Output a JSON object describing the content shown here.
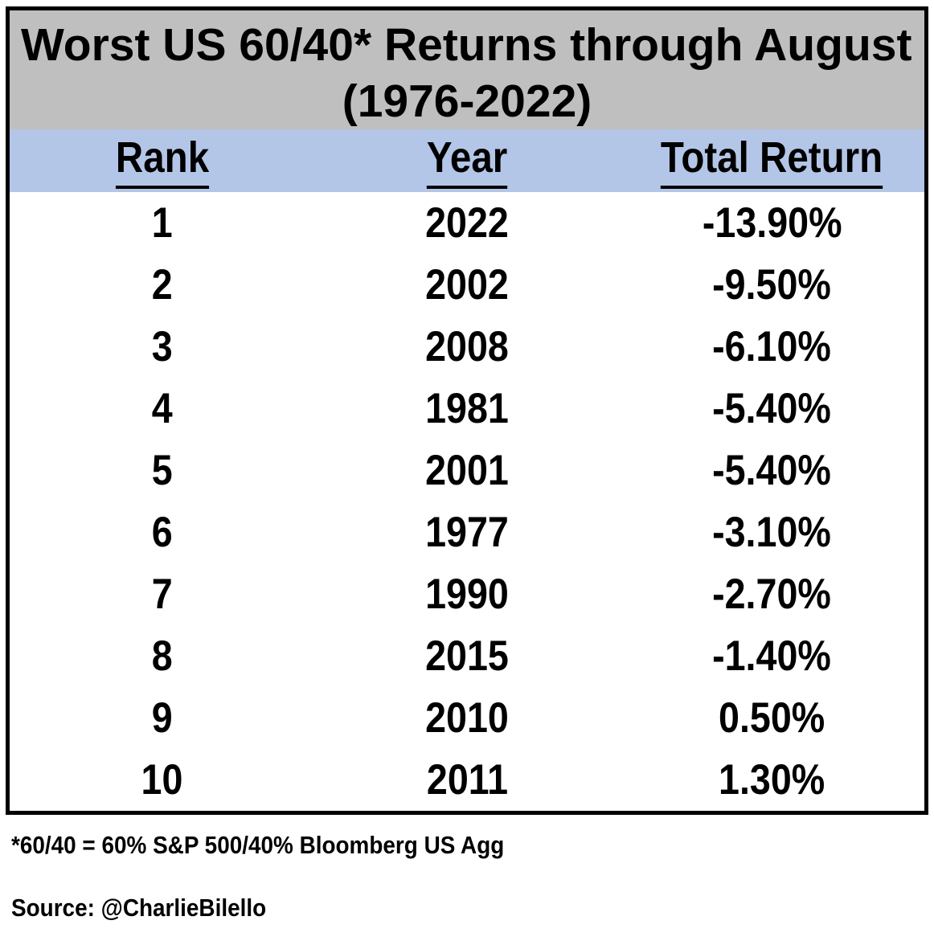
{
  "title": {
    "line1": "Worst US 60/40* Returns through August",
    "line2": "(1976-2022)"
  },
  "columns": {
    "rank": "Rank",
    "year": "Year",
    "total_return": "Total Return"
  },
  "rows": [
    {
      "rank": "1",
      "year": "2022",
      "total_return": "-13.90%"
    },
    {
      "rank": "2",
      "year": "2002",
      "total_return": "-9.50%"
    },
    {
      "rank": "3",
      "year": "2008",
      "total_return": "-6.10%"
    },
    {
      "rank": "4",
      "year": "1981",
      "total_return": "-5.40%"
    },
    {
      "rank": "5",
      "year": "2001",
      "total_return": "-5.40%"
    },
    {
      "rank": "6",
      "year": "1977",
      "total_return": "-3.10%"
    },
    {
      "rank": "7",
      "year": "1990",
      "total_return": "-2.70%"
    },
    {
      "rank": "8",
      "year": "2015",
      "total_return": "-1.40%"
    },
    {
      "rank": "9",
      "year": "2010",
      "total_return": "0.50%"
    },
    {
      "rank": "10",
      "year": "2011",
      "total_return": "1.30%"
    }
  ],
  "footnotes": {
    "definition": "*60/40 = 60% S&P 500/40% Bloomberg US Agg",
    "source": "Source: @CharlieBilello"
  },
  "colors": {
    "title_bg": "#bfbfbf",
    "header_bg": "#b4c6e7",
    "border": "#000000",
    "text": "#000000",
    "page_bg": "#ffffff"
  },
  "chart_data": {
    "type": "table",
    "title": "Worst US 60/40* Returns through August (1976-2022)",
    "columns": [
      "Rank",
      "Year",
      "Total Return"
    ],
    "rows": [
      [
        1,
        2022,
        -13.9
      ],
      [
        2,
        2002,
        -9.5
      ],
      [
        3,
        2008,
        -6.1
      ],
      [
        4,
        1981,
        -5.4
      ],
      [
        5,
        2001,
        -5.4
      ],
      [
        6,
        1977,
        -3.1
      ],
      [
        7,
        1990,
        -2.7
      ],
      [
        8,
        2015,
        -1.4
      ],
      [
        9,
        2010,
        0.5
      ],
      [
        10,
        2011,
        1.3
      ]
    ],
    "value_unit": "percent",
    "footnote": "*60/40 = 60% S&P 500/40% Bloomberg US Agg",
    "source": "Source: @CharlieBilello"
  }
}
